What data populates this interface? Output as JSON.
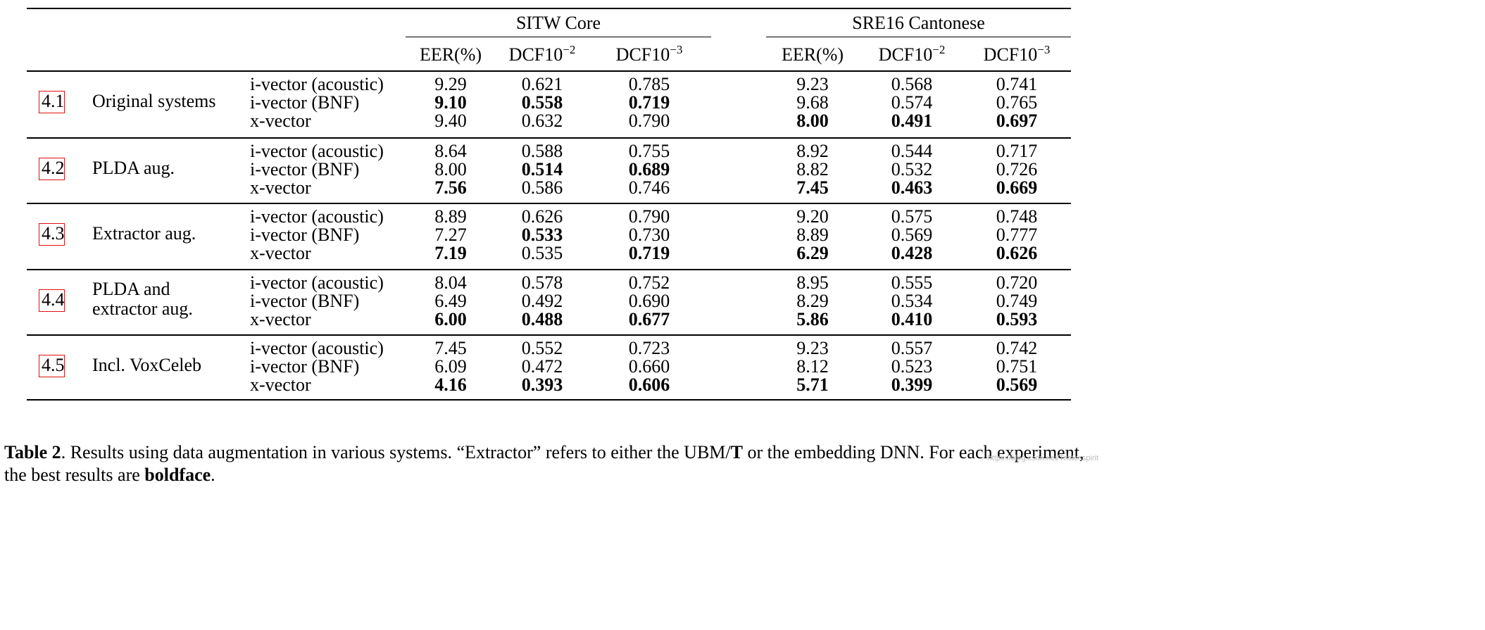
{
  "header": {
    "groups": [
      {
        "label": "SITW Core"
      },
      {
        "label": "SRE16 Cantonese"
      }
    ],
    "metrics": [
      {
        "base": "EER(%)",
        "sup": ""
      },
      {
        "base": "DCF10",
        "sup": "−2"
      },
      {
        "base": "DCF10",
        "sup": "−3"
      },
      {
        "base": "EER(%)",
        "sup": ""
      },
      {
        "base": "DCF10",
        "sup": "−2"
      },
      {
        "base": "DCF10",
        "sup": "−3"
      }
    ]
  },
  "sections": [
    {
      "ref": "4.1",
      "label_lines": [
        "Original systems"
      ],
      "rows": [
        {
          "system": "i-vector (acoustic)",
          "values": [
            "9.29",
            "0.621",
            "0.785",
            "9.23",
            "0.568",
            "0.741"
          ],
          "bold": [
            false,
            false,
            false,
            false,
            false,
            false
          ]
        },
        {
          "system": "i-vector (BNF)",
          "values": [
            "9.10",
            "0.558",
            "0.719",
            "9.68",
            "0.574",
            "0.765"
          ],
          "bold": [
            true,
            true,
            true,
            false,
            false,
            false
          ]
        },
        {
          "system": "x-vector",
          "values": [
            "9.40",
            "0.632",
            "0.790",
            "8.00",
            "0.491",
            "0.697"
          ],
          "bold": [
            false,
            false,
            false,
            true,
            true,
            true
          ]
        }
      ]
    },
    {
      "ref": "4.2",
      "label_lines": [
        "PLDA aug."
      ],
      "rows": [
        {
          "system": "i-vector (acoustic)",
          "values": [
            "8.64",
            "0.588",
            "0.755",
            "8.92",
            "0.544",
            "0.717"
          ],
          "bold": [
            false,
            false,
            false,
            false,
            false,
            false
          ]
        },
        {
          "system": "i-vector (BNF)",
          "values": [
            "8.00",
            "0.514",
            "0.689",
            "8.82",
            "0.532",
            "0.726"
          ],
          "bold": [
            false,
            true,
            true,
            false,
            false,
            false
          ]
        },
        {
          "system": "x-vector",
          "values": [
            "7.56",
            "0.586",
            "0.746",
            "7.45",
            "0.463",
            "0.669"
          ],
          "bold": [
            true,
            false,
            false,
            true,
            true,
            true
          ]
        }
      ]
    },
    {
      "ref": "4.3",
      "label_lines": [
        "Extractor aug."
      ],
      "rows": [
        {
          "system": "i-vector (acoustic)",
          "values": [
            "8.89",
            "0.626",
            "0.790",
            "9.20",
            "0.575",
            "0.748"
          ],
          "bold": [
            false,
            false,
            false,
            false,
            false,
            false
          ]
        },
        {
          "system": "i-vector (BNF)",
          "values": [
            "7.27",
            "0.533",
            "0.730",
            "8.89",
            "0.569",
            "0.777"
          ],
          "bold": [
            false,
            true,
            false,
            false,
            false,
            false
          ]
        },
        {
          "system": "x-vector",
          "values": [
            "7.19",
            "0.535",
            "0.719",
            "6.29",
            "0.428",
            "0.626"
          ],
          "bold": [
            true,
            false,
            true,
            true,
            true,
            true
          ]
        }
      ]
    },
    {
      "ref": "4.4",
      "label_lines": [
        "PLDA and",
        "extractor aug."
      ],
      "rows": [
        {
          "system": "i-vector (acoustic)",
          "values": [
            "8.04",
            "0.578",
            "0.752",
            "8.95",
            "0.555",
            "0.720"
          ],
          "bold": [
            false,
            false,
            false,
            false,
            false,
            false
          ]
        },
        {
          "system": "i-vector (BNF)",
          "values": [
            "6.49",
            "0.492",
            "0.690",
            "8.29",
            "0.534",
            "0.749"
          ],
          "bold": [
            false,
            false,
            false,
            false,
            false,
            false
          ]
        },
        {
          "system": "x-vector",
          "values": [
            "6.00",
            "0.488",
            "0.677",
            "5.86",
            "0.410",
            "0.593"
          ],
          "bold": [
            true,
            true,
            true,
            true,
            true,
            true
          ]
        }
      ]
    },
    {
      "ref": "4.5",
      "label_lines": [
        "Incl. VoxCeleb"
      ],
      "rows": [
        {
          "system": "i-vector (acoustic)",
          "values": [
            "7.45",
            "0.552",
            "0.723",
            "9.23",
            "0.557",
            "0.742"
          ],
          "bold": [
            false,
            false,
            false,
            false,
            false,
            false
          ]
        },
        {
          "system": "i-vector (BNF)",
          "values": [
            "6.09",
            "0.472",
            "0.660",
            "8.12",
            "0.523",
            "0.751"
          ],
          "bold": [
            false,
            false,
            false,
            false,
            false,
            false
          ]
        },
        {
          "system": "x-vector",
          "values": [
            "4.16",
            "0.393",
            "0.606",
            "5.71",
            "0.399",
            "0.569"
          ],
          "bold": [
            true,
            true,
            true,
            true,
            true,
            true
          ]
        }
      ]
    }
  ],
  "caption": {
    "label": "Table 2",
    "text_1": ".  Results using data augmentation in various systems.  “Extractor” refers to either the UBM/",
    "bold_T": "T",
    "text_2": " or the embedding DNN. For each experiment, the best results are ",
    "bold_word": "boldface",
    "text_3": "."
  },
  "watermark": "https://blog.csdn.net/Tristesspirit"
}
